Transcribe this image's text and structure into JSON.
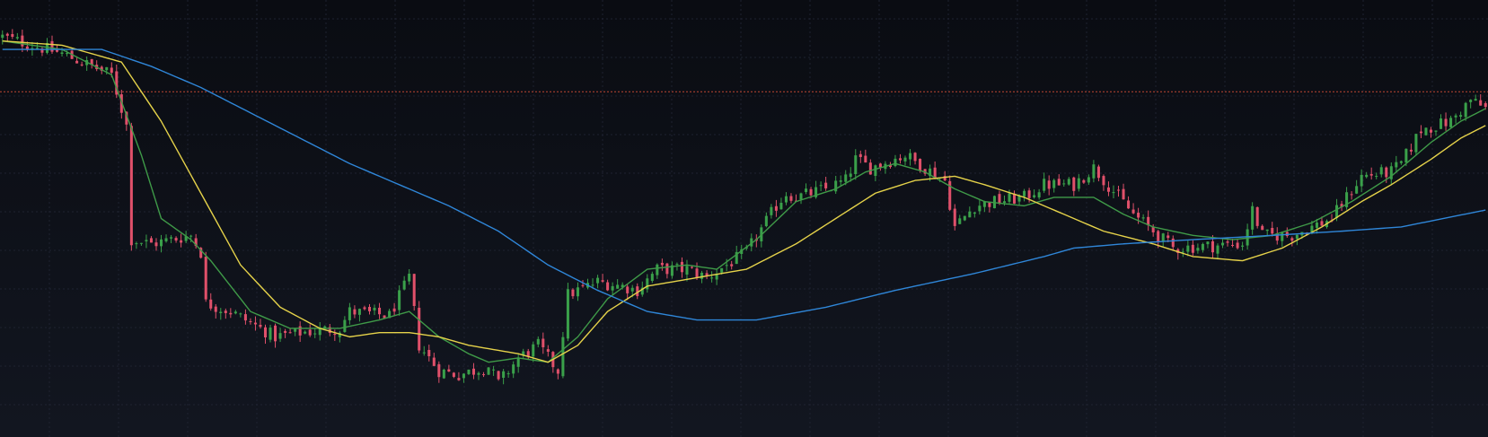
{
  "colors": {
    "background": "#0c0f16",
    "grid": "#1e2230",
    "up": "#3aa04a",
    "down": "#e0506a",
    "ma_fast": "#3f9a48",
    "ma_mid": "#e5d24a",
    "ma_slow": "#2f86d8",
    "price_line": "#e0503a"
  },
  "chart_data": {
    "type": "candlestick",
    "title": "",
    "xlabel": "",
    "ylabel": "",
    "ylim": [
      0,
      100
    ],
    "n_bars": 300,
    "grid": true,
    "price_line_level": 80,
    "close_path": [
      [
        0,
        93
      ],
      [
        12,
        89
      ],
      [
        22,
        84
      ],
      [
        25,
        72
      ],
      [
        26,
        45
      ],
      [
        30,
        44
      ],
      [
        38,
        46
      ],
      [
        40,
        42
      ],
      [
        41,
        30
      ],
      [
        46,
        28
      ],
      [
        55,
        22
      ],
      [
        60,
        23
      ],
      [
        68,
        24
      ],
      [
        70,
        28
      ],
      [
        78,
        27
      ],
      [
        82,
        36
      ],
      [
        84,
        20
      ],
      [
        88,
        14
      ],
      [
        92,
        13
      ],
      [
        98,
        15
      ],
      [
        100,
        11
      ],
      [
        104,
        17
      ],
      [
        108,
        20
      ],
      [
        112,
        14
      ],
      [
        114,
        32
      ],
      [
        120,
        35
      ],
      [
        125,
        34
      ],
      [
        128,
        33
      ],
      [
        132,
        38
      ],
      [
        138,
        38
      ],
      [
        142,
        36
      ],
      [
        146,
        39
      ],
      [
        150,
        42
      ],
      [
        156,
        53
      ],
      [
        158,
        56
      ],
      [
        160,
        55
      ],
      [
        166,
        57
      ],
      [
        170,
        59
      ],
      [
        172,
        64
      ],
      [
        175,
        62
      ],
      [
        182,
        65
      ],
      [
        186,
        62
      ],
      [
        190,
        59
      ],
      [
        192,
        48
      ],
      [
        196,
        53
      ],
      [
        200,
        54
      ],
      [
        206,
        55
      ],
      [
        210,
        58
      ],
      [
        216,
        58
      ],
      [
        220,
        62
      ],
      [
        228,
        51
      ],
      [
        236,
        43
      ],
      [
        250,
        44
      ],
      [
        252,
        52
      ],
      [
        254,
        46
      ],
      [
        260,
        46
      ],
      [
        268,
        50
      ],
      [
        274,
        60
      ],
      [
        280,
        61
      ],
      [
        282,
        63
      ],
      [
        286,
        71
      ],
      [
        292,
        73
      ],
      [
        296,
        78
      ],
      [
        299,
        76
      ]
    ],
    "moving_averages": [
      {
        "key": "ma_fast",
        "values": [
          [
            0,
            92
          ],
          [
            12,
            90
          ],
          [
            22,
            84
          ],
          [
            28,
            65
          ],
          [
            32,
            50
          ],
          [
            38,
            45
          ],
          [
            42,
            40
          ],
          [
            50,
            28
          ],
          [
            58,
            24
          ],
          [
            68,
            24
          ],
          [
            76,
            26
          ],
          [
            82,
            28
          ],
          [
            88,
            22
          ],
          [
            94,
            18
          ],
          [
            98,
            16
          ],
          [
            104,
            17
          ],
          [
            110,
            16
          ],
          [
            116,
            22
          ],
          [
            122,
            31
          ],
          [
            130,
            38
          ],
          [
            138,
            39
          ],
          [
            144,
            38
          ],
          [
            152,
            45
          ],
          [
            160,
            54
          ],
          [
            168,
            57
          ],
          [
            174,
            61
          ],
          [
            180,
            63
          ],
          [
            186,
            61
          ],
          [
            192,
            57
          ],
          [
            198,
            54
          ],
          [
            206,
            53
          ],
          [
            212,
            55
          ],
          [
            220,
            55
          ],
          [
            226,
            51
          ],
          [
            232,
            48
          ],
          [
            240,
            46
          ],
          [
            248,
            45
          ],
          [
            256,
            46
          ],
          [
            264,
            49
          ],
          [
            272,
            54
          ],
          [
            280,
            60
          ],
          [
            288,
            68
          ],
          [
            294,
            73
          ],
          [
            299,
            76
          ]
        ]
      },
      {
        "key": "ma_mid",
        "values": [
          [
            0,
            92
          ],
          [
            12,
            91
          ],
          [
            24,
            87
          ],
          [
            32,
            73
          ],
          [
            40,
            56
          ],
          [
            48,
            39
          ],
          [
            56,
            29
          ],
          [
            64,
            24
          ],
          [
            70,
            22
          ],
          [
            76,
            23
          ],
          [
            82,
            23
          ],
          [
            88,
            22
          ],
          [
            94,
            20
          ],
          [
            104,
            18
          ],
          [
            110,
            16
          ],
          [
            116,
            20
          ],
          [
            122,
            28
          ],
          [
            130,
            34
          ],
          [
            140,
            36
          ],
          [
            150,
            38
          ],
          [
            160,
            44
          ],
          [
            168,
            50
          ],
          [
            176,
            56
          ],
          [
            184,
            59
          ],
          [
            192,
            60
          ],
          [
            198,
            58
          ],
          [
            206,
            55
          ],
          [
            214,
            51
          ],
          [
            222,
            47
          ],
          [
            232,
            44
          ],
          [
            240,
            41
          ],
          [
            250,
            40
          ],
          [
            258,
            43
          ],
          [
            266,
            48
          ],
          [
            274,
            54
          ],
          [
            280,
            58
          ],
          [
            288,
            64
          ],
          [
            294,
            69
          ],
          [
            299,
            72
          ]
        ]
      },
      {
        "key": "ma_slow",
        "values": [
          [
            0,
            90
          ],
          [
            20,
            90
          ],
          [
            30,
            86
          ],
          [
            40,
            81
          ],
          [
            50,
            75
          ],
          [
            60,
            69
          ],
          [
            70,
            63
          ],
          [
            80,
            58
          ],
          [
            90,
            53
          ],
          [
            100,
            47
          ],
          [
            110,
            39
          ],
          [
            120,
            33
          ],
          [
            130,
            28
          ],
          [
            140,
            26
          ],
          [
            152,
            26
          ],
          [
            166,
            29
          ],
          [
            180,
            33
          ],
          [
            196,
            37
          ],
          [
            210,
            41
          ],
          [
            216,
            43
          ],
          [
            226,
            44
          ],
          [
            240,
            45
          ],
          [
            256,
            46
          ],
          [
            270,
            47
          ],
          [
            282,
            48
          ],
          [
            299,
            52
          ]
        ]
      }
    ]
  }
}
